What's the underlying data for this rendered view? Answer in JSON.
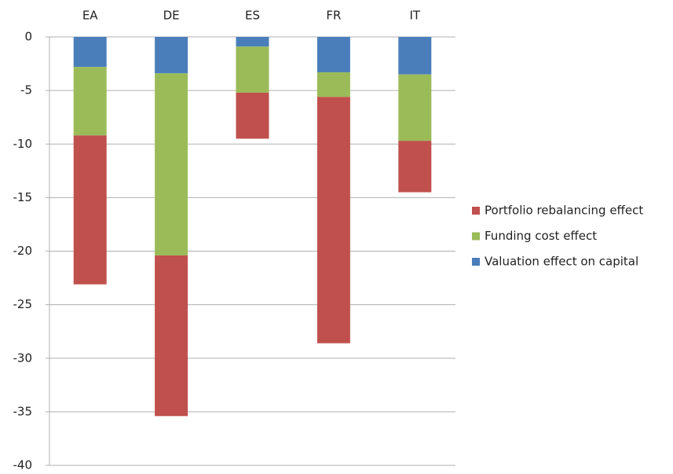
{
  "chart_data": {
    "type": "bar",
    "stacked": true,
    "categories": [
      "EA",
      "DE",
      "ES",
      "FR",
      "IT"
    ],
    "series": [
      {
        "name": "Valuation effect on capital",
        "color": "#4a7ebb",
        "values": [
          -2.8,
          -3.4,
          -0.9,
          -3.3,
          -3.5
        ]
      },
      {
        "name": "Funding cost effect",
        "color": "#9bbb59",
        "values": [
          -6.4,
          -17.0,
          -4.3,
          -2.3,
          -6.2
        ]
      },
      {
        "name": "Portfolio rebalancing effect",
        "color": "#c0504d",
        "values": [
          -13.9,
          -15.0,
          -4.3,
          -23.0,
          -4.8
        ]
      }
    ],
    "ylim": [
      -40,
      0
    ],
    "yticks": [
      0,
      -5,
      -10,
      -15,
      -20,
      -25,
      -30,
      -35,
      -40
    ],
    "grid": true
  }
}
